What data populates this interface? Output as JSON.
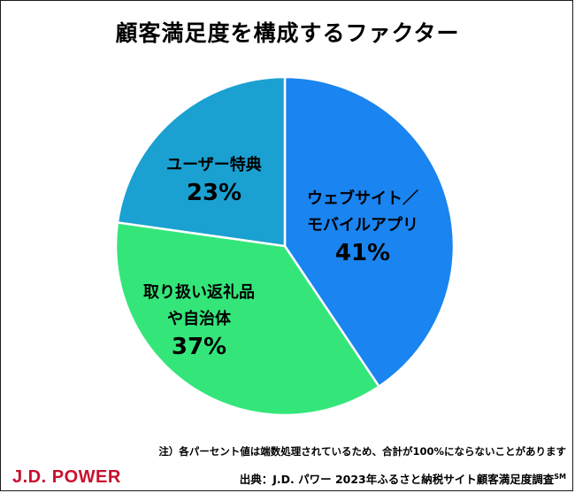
{
  "chart_data": {
    "type": "pie",
    "title": "顧客満足度を構成するファクター",
    "slices": [
      {
        "label_lines": [
          "ウェブサイト／",
          "モバイルアプリ"
        ],
        "value": 41,
        "value_label": "41%",
        "color": "#1a84f0"
      },
      {
        "label_lines": [
          "取り扱い返礼品",
          "や自治体"
        ],
        "value": 37,
        "value_label": "37%",
        "color": "#34e67a"
      },
      {
        "label_lines": [
          "ユーザー特典"
        ],
        "value": 23,
        "value_label": "23%",
        "color": "#1aa1d1"
      }
    ],
    "start_angle_deg": 0,
    "direction": "clockwise",
    "slice_border_color": "#ffffff"
  },
  "footer": {
    "note": "注）各パーセント値は端数処理されているため、合計が100%にならないことがあります",
    "source_main": "出典：J.D. パワー 2023年ふるさと納税サイト顧客満足度調査",
    "source_sup": "SM"
  },
  "brand": {
    "logo_text": "J.D. POWER",
    "logo_color": "#c8102e"
  }
}
